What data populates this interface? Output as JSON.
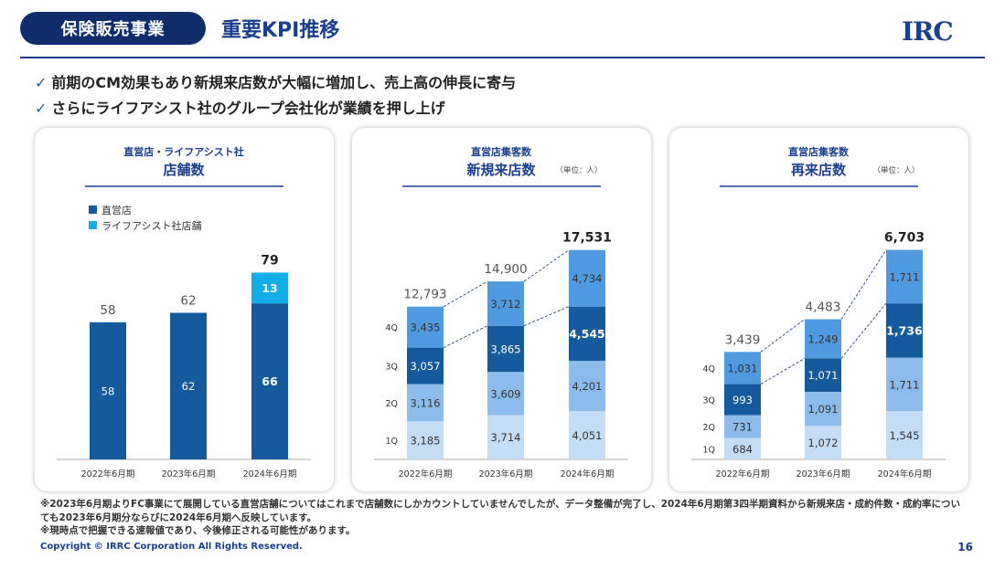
{
  "header": {
    "section": "保険販売事業",
    "title": "重要KPI推移",
    "logo": "IRC"
  },
  "bullets": [
    "前期のCM効果もあり新規来店数が大幅に増加し、売上高の伸長に寄与",
    "さらにライフアシスト社のグループ会社化が業績を押し上げ"
  ],
  "colors": {
    "direct": "#155a9c",
    "lifeassist": "#11aeea",
    "q4": "#4f9ae0",
    "q3": "#155a9c",
    "q2": "#8cbcec",
    "q1": "#c3ddf6"
  },
  "chart_data": [
    {
      "type": "bar",
      "subtitle": "直営店・ライフアシスト社",
      "title": "店舗数",
      "unit": "",
      "categories": [
        "2022年6月期",
        "2023年6月期",
        "2024年6月期"
      ],
      "series": [
        {
          "name": "直営店",
          "values": [
            58,
            62,
            66
          ]
        },
        {
          "name": "ライフアシスト社店舗",
          "values": [
            0,
            0,
            13
          ]
        }
      ],
      "totals": [
        58,
        62,
        79
      ],
      "ylim": [
        0,
        90
      ]
    },
    {
      "type": "bar",
      "subtitle": "直営店集客数",
      "title": "新規来店数",
      "unit": "（単位：人）",
      "categories": [
        "2022年6月期",
        "2023年6月期",
        "2024年6月期"
      ],
      "series": [
        {
          "name": "1Q",
          "values": [
            3185,
            3714,
            4051
          ]
        },
        {
          "name": "2Q",
          "values": [
            3116,
            3609,
            4201
          ]
        },
        {
          "name": "3Q",
          "values": [
            3057,
            3865,
            4545
          ]
        },
        {
          "name": "4Q",
          "values": [
            3435,
            3712,
            4734
          ]
        }
      ],
      "totals": [
        12793,
        14900,
        17531
      ],
      "ylim": [
        0,
        19500
      ]
    },
    {
      "type": "bar",
      "subtitle": "直営店集客数",
      "title": "再来店数",
      "unit": "（単位：人）",
      "categories": [
        "2022年6月期",
        "2023年6月期",
        "2024年6月期"
      ],
      "series": [
        {
          "name": "1Q",
          "values": [
            684,
            1072,
            1545
          ]
        },
        {
          "name": "2Q",
          "values": [
            731,
            1091,
            1711
          ]
        },
        {
          "name": "3Q",
          "values": [
            993,
            1071,
            1736
          ]
        },
        {
          "name": "4Q",
          "values": [
            1031,
            1249,
            1711
          ]
        }
      ],
      "totals": [
        3439,
        4483,
        6703
      ],
      "ylim": [
        0,
        7450
      ]
    }
  ],
  "notes": [
    "※2023年6月期よりFC事業にて展開している直営店舗についてはこれまで店舗数にしかカウントしていませんでしたが、データ整備が完了し、2024年6月期第3四半期資料から新規来店・成約件数・成約率についても2023年6月期分ならびに2024年6月期へ反映しています。",
    "※現時点で把握できる速報値であり、今後修正される可能性があります。"
  ],
  "footer": {
    "copyright": "Copyright © IRRC Corporation All Rights Reserved.",
    "page": "16"
  }
}
